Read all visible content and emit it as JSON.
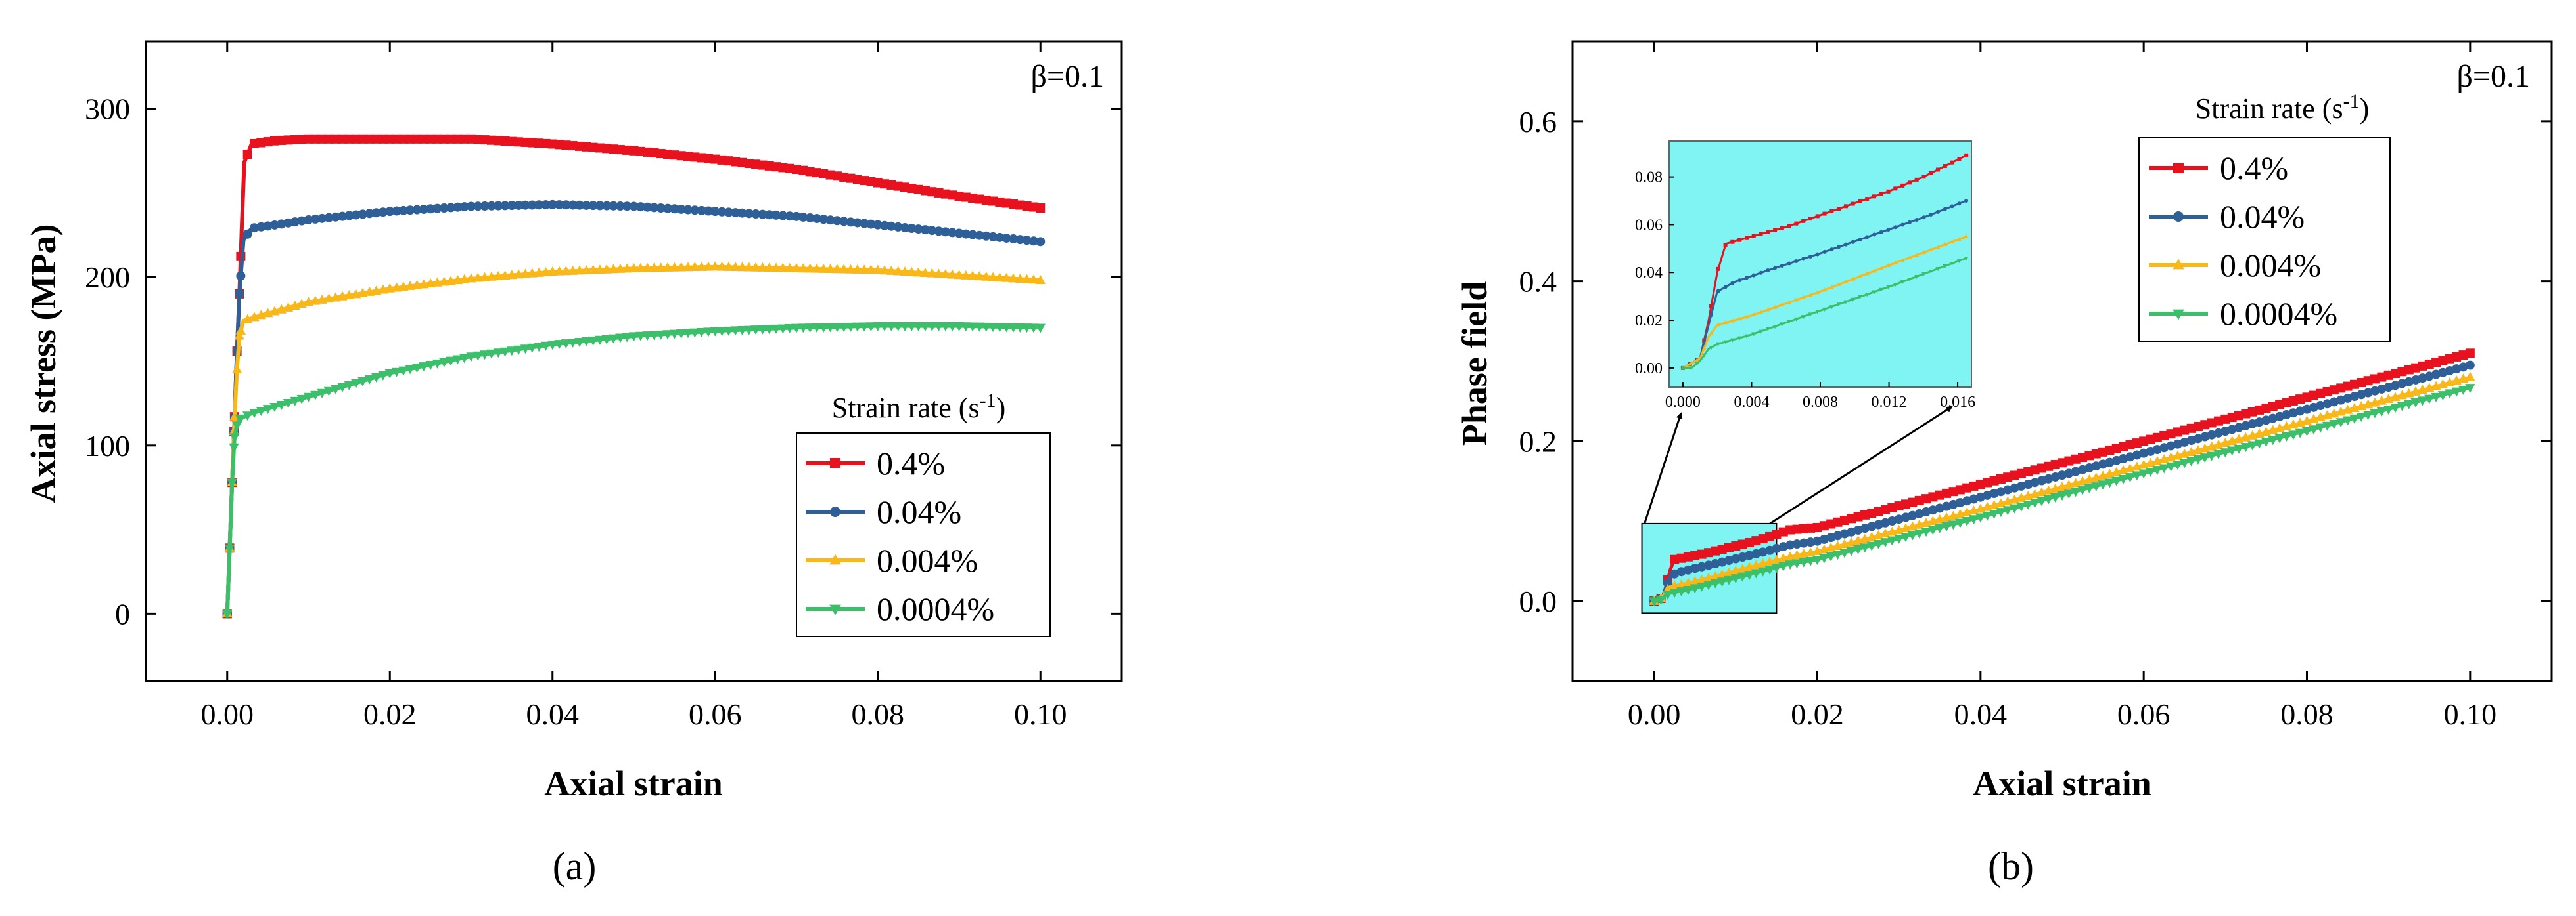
{
  "colors": {
    "red": "#e8121e",
    "blue": "#2f5f97",
    "yellow": "#f8b81a",
    "green": "#3cbf6a",
    "inset_bg": "#80f3f3",
    "axis": "#000000"
  },
  "chart_data": [
    {
      "type": "line",
      "panel_label": "(a)",
      "annotation": "β=0.1",
      "xlabel": "Axial strain",
      "ylabel": "Axial stress (MPa)",
      "xlim": [
        -0.01,
        0.11
      ],
      "ylim": [
        -40,
        340
      ],
      "xticks": [
        0.0,
        0.02,
        0.04,
        0.06,
        0.08,
        0.1
      ],
      "xtick_labels": [
        "0.00",
        "0.02",
        "0.04",
        "0.06",
        "0.08",
        "0.10"
      ],
      "yticks": [
        0,
        100,
        200,
        300
      ],
      "ytick_labels": [
        "0",
        "100",
        "200",
        "300"
      ],
      "legend": {
        "title_prefix": "Strain rate (s",
        "title_exp": "-1",
        "title_suffix": ")",
        "position": "lower-right"
      },
      "series": [
        {
          "name": "0.4%",
          "color_key": "red",
          "marker": "square",
          "x": [
            0,
            0.0003,
            0.0006,
            0.0009,
            0.0012,
            0.0015,
            0.0018,
            0.0021,
            0.003,
            0.006,
            0.01,
            0.02,
            0.03,
            0.04,
            0.05,
            0.06,
            0.07,
            0.08,
            0.09,
            0.1
          ],
          "y": [
            0,
            39,
            78,
            117,
            156,
            190,
            230,
            268,
            279,
            281,
            282,
            282,
            282,
            279,
            275,
            270,
            264,
            256,
            248,
            241
          ]
        },
        {
          "name": "0.04%",
          "color_key": "blue",
          "marker": "circle",
          "x": [
            0,
            0.0003,
            0.0006,
            0.0009,
            0.0012,
            0.0015,
            0.002,
            0.003,
            0.006,
            0.01,
            0.02,
            0.03,
            0.04,
            0.05,
            0.06,
            0.07,
            0.08,
            0.09,
            0.1
          ],
          "y": [
            0,
            39,
            78,
            117,
            156,
            190,
            222,
            229,
            231,
            234,
            239,
            242,
            243,
            242,
            239,
            236,
            231,
            226,
            221
          ]
        },
        {
          "name": "0.004%",
          "color_key": "yellow",
          "marker": "triangle-up",
          "x": [
            0,
            0.0003,
            0.0006,
            0.0009,
            0.0012,
            0.0015,
            0.002,
            0.004,
            0.01,
            0.02,
            0.03,
            0.04,
            0.05,
            0.06,
            0.07,
            0.08,
            0.09,
            0.1
          ],
          "y": [
            0,
            39,
            78,
            117,
            145,
            165,
            174,
            177,
            185,
            193,
            199,
            203,
            205,
            206,
            205,
            204,
            201,
            198
          ]
        },
        {
          "name": "0.0004%",
          "color_key": "green",
          "marker": "triangle-down",
          "x": [
            0,
            0.0003,
            0.0006,
            0.0009,
            0.0012,
            0.0016,
            0.003,
            0.01,
            0.02,
            0.03,
            0.04,
            0.05,
            0.06,
            0.07,
            0.08,
            0.09,
            0.1
          ],
          "y": [
            0,
            39,
            78,
            105,
            112,
            116,
            119,
            129,
            143,
            153,
            160,
            165,
            168,
            170,
            171,
            171,
            170
          ]
        }
      ]
    },
    {
      "type": "line",
      "panel_label": "(b)",
      "annotation": "β=0.1",
      "xlabel": "Axial strain",
      "ylabel": "Phase field",
      "xlim": [
        -0.01,
        0.11
      ],
      "ylim": [
        -0.1,
        0.7
      ],
      "xticks": [
        0.0,
        0.02,
        0.04,
        0.06,
        0.08,
        0.1
      ],
      "xtick_labels": [
        "0.00",
        "0.02",
        "0.04",
        "0.06",
        "0.08",
        "0.10"
      ],
      "yticks": [
        0.0,
        0.2,
        0.4,
        0.6
      ],
      "ytick_labels": [
        "0.0",
        "0.2",
        "0.4",
        "0.6"
      ],
      "legend": {
        "title_prefix": "Strain rate (s",
        "title_exp": "-1",
        "title_suffix": ")",
        "position": "top-right"
      },
      "series": [
        {
          "name": "0.4%",
          "color_key": "red",
          "marker": "square",
          "x": [
            0,
            0.001,
            0.0015,
            0.002,
            0.0025,
            0.004,
            0.006,
            0.008,
            0.01,
            0.012,
            0.014,
            0.0165,
            0.02,
            0.04,
            0.06,
            0.08,
            0.1
          ],
          "y": [
            0,
            0.004,
            0.02,
            0.04,
            0.052,
            0.055,
            0.059,
            0.064,
            0.069,
            0.074,
            0.08,
            0.089,
            0.092,
            0.146,
            0.2,
            0.255,
            0.31
          ]
        },
        {
          "name": "0.04%",
          "color_key": "blue",
          "marker": "circle",
          "x": [
            0,
            0.001,
            0.0015,
            0.002,
            0.003,
            0.005,
            0.008,
            0.01,
            0.012,
            0.014,
            0.0165,
            0.02,
            0.04,
            0.06,
            0.08,
            0.1
          ],
          "y": [
            0,
            0.004,
            0.018,
            0.032,
            0.036,
            0.041,
            0.048,
            0.053,
            0.058,
            0.063,
            0.07,
            0.075,
            0.13,
            0.185,
            0.24,
            0.295
          ]
        },
        {
          "name": "0.004%",
          "color_key": "yellow",
          "marker": "triangle-up",
          "x": [
            0,
            0.001,
            0.0015,
            0.002,
            0.004,
            0.008,
            0.012,
            0.0165,
            0.02,
            0.04,
            0.06,
            0.08,
            0.1
          ],
          "y": [
            0,
            0.004,
            0.013,
            0.018,
            0.022,
            0.032,
            0.043,
            0.055,
            0.062,
            0.115,
            0.17,
            0.225,
            0.28
          ]
        },
        {
          "name": "0.0004%",
          "color_key": "green",
          "marker": "triangle-down",
          "x": [
            0,
            0.0005,
            0.001,
            0.0015,
            0.002,
            0.004,
            0.008,
            0.012,
            0.0165,
            0.02,
            0.04,
            0.06,
            0.08,
            0.1
          ],
          "y": [
            0,
            0.0,
            0.003,
            0.008,
            0.01,
            0.014,
            0.024,
            0.034,
            0.046,
            0.052,
            0.105,
            0.16,
            0.213,
            0.267
          ]
        }
      ],
      "zoom_region": {
        "xlim": [
          -0.0015,
          0.015
        ],
        "ylim": [
          -0.015,
          0.097
        ]
      },
      "inset": {
        "xlim": [
          -0.0008,
          0.0168
        ],
        "ylim": [
          -0.008,
          0.095
        ],
        "xticks": [
          0.0,
          0.004,
          0.008,
          0.012,
          0.016
        ],
        "xtick_labels": [
          "0.000",
          "0.004",
          "0.008",
          "0.012",
          "0.016"
        ],
        "yticks": [
          0.0,
          0.02,
          0.04,
          0.06,
          0.08
        ],
        "ytick_labels": [
          "0.00",
          "0.02",
          "0.04",
          "0.06",
          "0.08"
        ]
      }
    }
  ]
}
